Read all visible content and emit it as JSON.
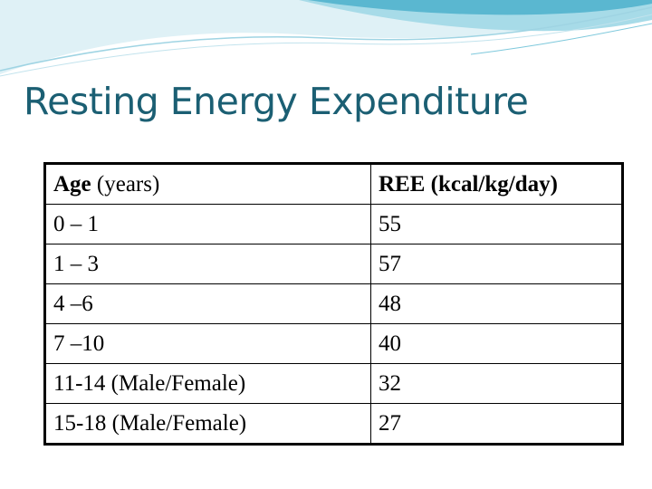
{
  "title": "Resting Energy Expenditure",
  "table": {
    "header": {
      "age_bold": "Age",
      "age_rest": " (years)",
      "ree": "REE (kcal/kg/day)"
    },
    "rows": [
      {
        "age": "0 – 1",
        "ree": "55"
      },
      {
        "age": "1 – 3",
        "ree": "57"
      },
      {
        "age": "4 –6",
        "ree": "48"
      },
      {
        "age": "7 –10",
        "ree": "40"
      },
      {
        "age": "11-14 (Male/Female)",
        "ree": "32"
      },
      {
        "age": "15-18 (Male/Female)",
        "ree": "27"
      }
    ]
  },
  "colors": {
    "title": "#1b5f73",
    "wave_light": "#c8e8f0",
    "wave_mid": "#7fc9dc",
    "wave_dark": "#3ea7c4"
  }
}
